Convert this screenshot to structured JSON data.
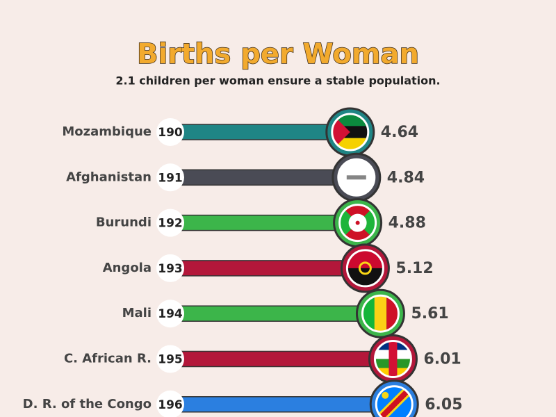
{
  "chart_data": {
    "type": "bar",
    "title": "Births per Woman",
    "subtitle": "2.1 children per woman ensure a stable population.",
    "categories": [
      "Mozambique",
      "Afghanistan",
      "Burundi",
      "Angola",
      "Mali",
      "C. African R.",
      "D. R. of the Congo"
    ],
    "ranks": [
      190,
      191,
      192,
      193,
      194,
      195,
      196
    ],
    "values": [
      4.64,
      4.84,
      4.88,
      5.12,
      5.61,
      6.01,
      6.05
    ],
    "colors": [
      "#1f8585",
      "#4a4b55",
      "#3cb54a",
      "#b3173a",
      "#3cb54a",
      "#b3173a",
      "#2b7fe0"
    ]
  }
}
